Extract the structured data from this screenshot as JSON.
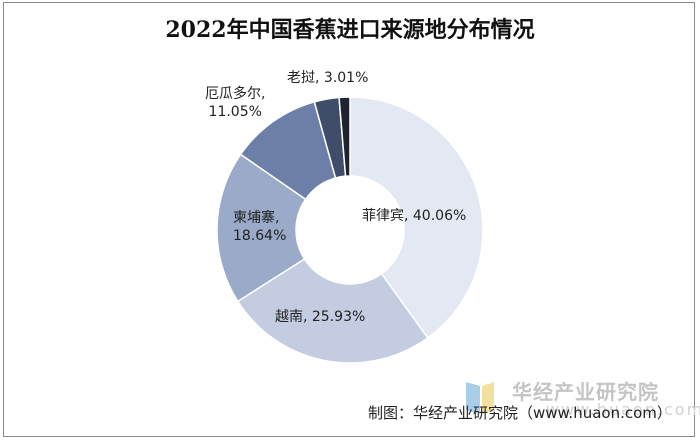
{
  "chart_data": {
    "type": "pie",
    "title": "2022年中国香蕉进口来源地分布情况",
    "slices": [
      {
        "name": "菲律宾",
        "value": 40.06,
        "label": "菲律宾, 40.06%",
        "color": "#e3e8f2"
      },
      {
        "name": "越南",
        "value": 25.93,
        "label": "越南, 25.93%",
        "color": "#c3cce0"
      },
      {
        "name": "柬埔寨",
        "value": 18.64,
        "label_lines": [
          "柬埔寨,",
          "18.64%"
        ],
        "color": "#9aaac8"
      },
      {
        "name": "厄瓜多尔",
        "value": 11.05,
        "label_lines": [
          "厄瓜多尔,",
          "11.05%"
        ],
        "color": "#6b7fa8"
      },
      {
        "name": "老挝",
        "value": 3.01,
        "label": "老挝, 3.01%",
        "color": "#3f4d6b"
      },
      {
        "name": "",
        "value": 1.31,
        "color": "#1f2430"
      }
    ]
  },
  "watermark": {
    "text": "华经产业研究院",
    "url": "www.huaon.com"
  },
  "credit": "制图：华经产业研究院（www.huaon.com）"
}
